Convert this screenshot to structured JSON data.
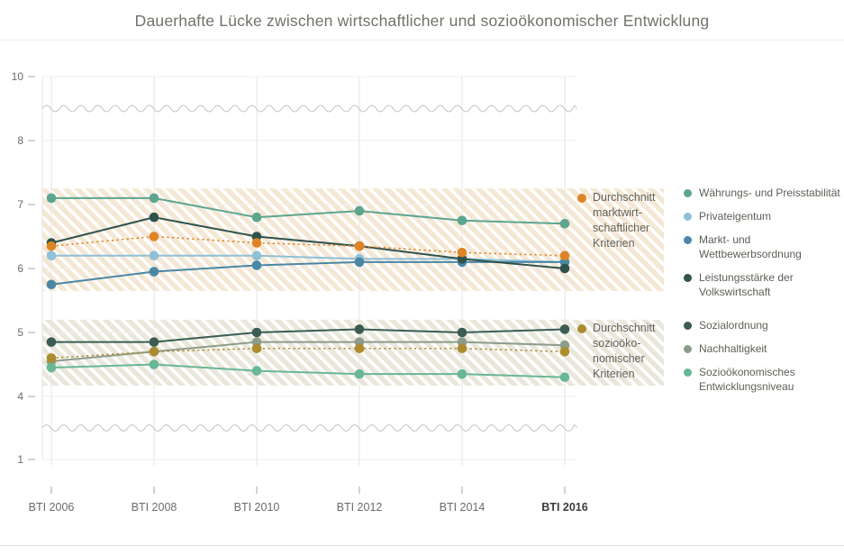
{
  "title": "Dauerhafte Lücke zwischen wirtschaftlicher und sozioökonomischer Entwicklung",
  "colors": {
    "background": "#ffffff",
    "title_text": "#72716a",
    "axis_text": "#6b6b6b",
    "axis_text_bold": "#3c3c3c",
    "grid_vertical": "#e6e6e6",
    "grid_horizontal": "#efefef",
    "tick_mark": "#a6a6a6",
    "axis_break_wave": "#c9c9c9",
    "legend_text": "#5e5e57",
    "band_markt": "#f4e7d3",
    "band_sozio": "#e9e7da"
  },
  "chart_data": {
    "type": "line",
    "title": "Dauerhafte Lücke zwischen wirtschaftlicher und sozioökonomischer Entwicklung",
    "categories": [
      "BTI 2006",
      "BTI 2008",
      "BTI 2010",
      "BTI 2012",
      "BTI 2014",
      "BTI 2016"
    ],
    "bold_last_category": true,
    "y_axis": {
      "ticks": [
        10,
        8,
        7,
        6,
        5,
        4,
        1
      ],
      "range_shown": [
        1,
        10
      ],
      "broken_axis": true,
      "breaks_between": [
        [
          8,
          10
        ],
        [
          1,
          4
        ]
      ]
    },
    "grid": true,
    "series": [
      {
        "name": "Währungs- und Preisstabilität",
        "color": "#5ca58f",
        "style": "solid",
        "group": "marktwirtschaftlich",
        "values": [
          7.1,
          7.1,
          6.8,
          6.9,
          6.75,
          6.7
        ]
      },
      {
        "name": "Privateigentum",
        "color": "#8fc0d8",
        "style": "solid",
        "group": "marktwirtschaftlich",
        "values": [
          6.2,
          6.2,
          6.2,
          6.15,
          6.15,
          6.1
        ]
      },
      {
        "name": "Markt- und Wettbewerbsordnung",
        "color": "#4a87a5",
        "style": "solid",
        "group": "marktwirtschaftlich",
        "values": [
          5.75,
          5.95,
          6.05,
          6.1,
          6.1,
          6.1
        ]
      },
      {
        "name": "Leistungsstärke der Volkswirtschaft",
        "color": "#2f524c",
        "style": "solid",
        "group": "marktwirtschaftlich",
        "values": [
          6.4,
          6.8,
          6.5,
          6.35,
          6.15,
          6.0
        ]
      },
      {
        "name": "Durchschnitt marktwirtschaftlicher Kriterien",
        "color": "#e08325",
        "style": "dotted",
        "group": "marktwirtschaftlich-durchschnitt",
        "values": [
          6.35,
          6.5,
          6.4,
          6.35,
          6.25,
          6.2
        ]
      },
      {
        "name": "Sozialordnung",
        "color": "#3b5d53",
        "style": "solid",
        "group": "soziooekonomisch",
        "values": [
          4.85,
          4.85,
          5.0,
          5.05,
          5.0,
          5.05
        ]
      },
      {
        "name": "Nachhaltigkeit",
        "color": "#8c9c8b",
        "style": "solid",
        "group": "soziooekonomisch",
        "values": [
          4.55,
          4.7,
          4.85,
          4.85,
          4.85,
          4.8
        ]
      },
      {
        "name": "Sozioökonomisches Entwicklungsniveau",
        "color": "#68b795",
        "style": "solid",
        "group": "soziooekonomisch",
        "values": [
          4.45,
          4.5,
          4.4,
          4.35,
          4.35,
          4.3
        ]
      },
      {
        "name": "Durchschnitt sozioökonomischer Kriterien",
        "color": "#ad8c30",
        "style": "dotted",
        "group": "soziooekonomisch-durchschnitt",
        "values": [
          4.6,
          4.7,
          4.75,
          4.75,
          4.75,
          4.7
        ]
      }
    ],
    "bands": [
      {
        "label": "marktwirtschaftliche Kriterien",
        "value_from": 5.65,
        "value_to": 7.25,
        "color": "#f4e7d3"
      },
      {
        "label": "sozioökonomische Kriterien",
        "value_from": 4.17,
        "value_to": 5.2,
        "color": "#e9e7da"
      }
    ],
    "legend_position": "right"
  },
  "legend": {
    "markt_avg_lines": [
      "Durchschnitt",
      "marktwirt-",
      "schaftlicher",
      "Kriterien"
    ],
    "sozio_avg_lines": [
      "Durchschnitt",
      "sozioöko-",
      "nomischer",
      "Kriterien"
    ]
  }
}
